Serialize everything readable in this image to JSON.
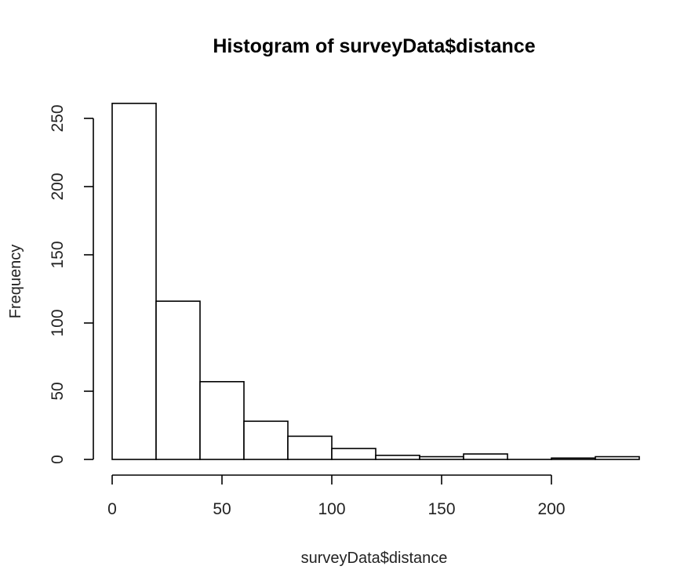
{
  "chart_data": {
    "type": "bar",
    "title": "Histogram of surveyData$distance",
    "xlabel": "surveyData$distance",
    "ylabel": "Frequency",
    "bin_width": 20,
    "bins": [
      {
        "x0": 0,
        "x1": 20,
        "count": 261
      },
      {
        "x0": 20,
        "x1": 40,
        "count": 116
      },
      {
        "x0": 40,
        "x1": 60,
        "count": 57
      },
      {
        "x0": 60,
        "x1": 80,
        "count": 28
      },
      {
        "x0": 80,
        "x1": 100,
        "count": 17
      },
      {
        "x0": 100,
        "x1": 120,
        "count": 8
      },
      {
        "x0": 120,
        "x1": 140,
        "count": 3
      },
      {
        "x0": 140,
        "x1": 160,
        "count": 2
      },
      {
        "x0": 160,
        "x1": 180,
        "count": 4
      },
      {
        "x0": 180,
        "x1": 200,
        "count": 0
      },
      {
        "x0": 200,
        "x1": 220,
        "count": 1
      },
      {
        "x0": 220,
        "x1": 240,
        "count": 2
      }
    ],
    "xticks": [
      0,
      50,
      100,
      150,
      200
    ],
    "yticks": [
      0,
      50,
      100,
      150,
      200,
      250
    ],
    "xlim": [
      0,
      240
    ],
    "ylim": [
      0,
      261
    ],
    "grid": false,
    "legend": "none"
  }
}
